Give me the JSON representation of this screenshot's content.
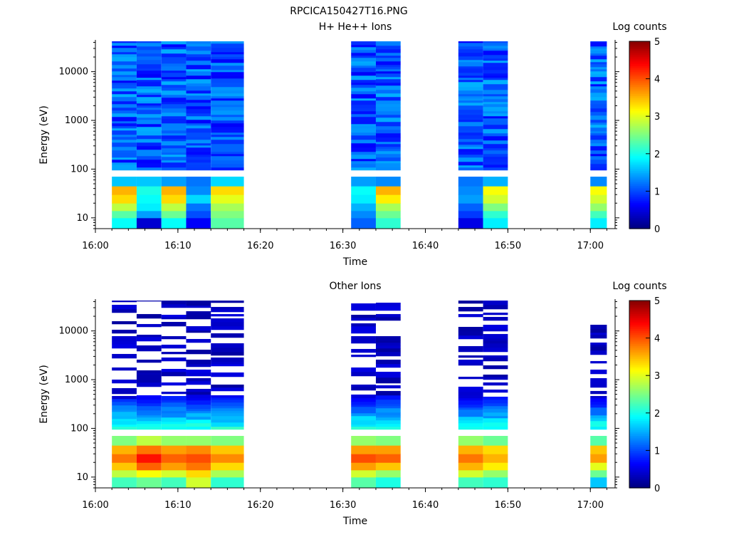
{
  "figure": {
    "title": "RPCICA150427T16.PNG"
  },
  "colorbar": {
    "label": "Log counts",
    "range": [
      0,
      5
    ],
    "ticks": [
      "0",
      "1",
      "2",
      "3",
      "4",
      "5"
    ]
  },
  "chart_data": [
    {
      "type": "heatmap",
      "title": "H+ He++ Ions",
      "xlabel": "Time",
      "ylabel": "Energy (eV)",
      "x_ticks": [
        "16:00",
        "16:10",
        "16:20",
        "16:30",
        "16:40",
        "16:50",
        "17:00"
      ],
      "y_ticks": [
        "10",
        "100",
        "1000",
        "10000"
      ],
      "xlim": [
        "16:00",
        "17:03"
      ],
      "ylim": [
        6,
        42000
      ],
      "y_scale": "log",
      "time_bins": [
        {
          "start": "16:02",
          "end": "16:05",
          "low_energy_log_counts": [
            1.9,
            2.3,
            2.8,
            3.3,
            3.5,
            1.6
          ]
        },
        {
          "start": "16:05",
          "end": "16:08",
          "low_energy_log_counts": [
            0.4,
            1.4,
            1.8,
            1.9,
            2.0,
            1.6
          ]
        },
        {
          "start": "16:08",
          "end": "16:11",
          "low_energy_log_counts": [
            1.9,
            2.4,
            2.8,
            3.3,
            3.5,
            1.4
          ]
        },
        {
          "start": "16:11",
          "end": "16:14",
          "low_energy_log_counts": [
            0.6,
            1.0,
            1.2,
            1.7,
            1.3,
            1.2
          ]
        },
        {
          "start": "16:14",
          "end": "16:18",
          "low_energy_log_counts": [
            2.3,
            2.5,
            2.7,
            3.0,
            3.3,
            1.7
          ]
        },
        {
          "start": "16:31",
          "end": "16:34",
          "low_energy_log_counts": [
            1.1,
            1.3,
            1.5,
            1.8,
            1.9,
            1.4
          ]
        },
        {
          "start": "16:34",
          "end": "16:37",
          "low_energy_log_counts": [
            2.1,
            2.4,
            2.7,
            3.2,
            3.5,
            1.3
          ]
        },
        {
          "start": "16:44",
          "end": "16:47",
          "low_energy_log_counts": [
            0.5,
            0.9,
            1.1,
            1.4,
            1.3,
            1.2
          ]
        },
        {
          "start": "16:47",
          "end": "16:50",
          "low_energy_log_counts": [
            1.8,
            2.1,
            2.5,
            2.9,
            3.1,
            1.5
          ]
        },
        {
          "start": "17:00",
          "end": "17:02",
          "low_energy_log_counts": [
            1.8,
            2.2,
            2.6,
            2.9,
            3.1,
            1.3
          ]
        }
      ]
    },
    {
      "type": "heatmap",
      "title": "Other Ions",
      "xlabel": "Time",
      "ylabel": "Energy (eV)",
      "x_ticks": [
        "16:00",
        "16:10",
        "16:20",
        "16:30",
        "16:40",
        "16:50",
        "17:00"
      ],
      "y_ticks": [
        "10",
        "100",
        "1000",
        "10000"
      ],
      "xlim": [
        "16:00",
        "17:03"
      ],
      "ylim": [
        6,
        42000
      ],
      "y_scale": "log",
      "time_bins": [
        {
          "start": "16:02",
          "end": "16:05",
          "low_energy_log_counts": [
            2.2,
            2.8,
            3.4,
            3.8,
            3.5,
            2.5
          ]
        },
        {
          "start": "16:05",
          "end": "16:08",
          "low_energy_log_counts": [
            2.4,
            3.1,
            3.9,
            4.3,
            3.8,
            2.8
          ]
        },
        {
          "start": "16:08",
          "end": "16:11",
          "low_energy_log_counts": [
            2.2,
            2.9,
            3.6,
            3.9,
            3.6,
            2.6
          ]
        },
        {
          "start": "16:11",
          "end": "16:14",
          "low_energy_log_counts": [
            2.9,
            3.3,
            3.8,
            4.0,
            3.7,
            2.6
          ]
        },
        {
          "start": "16:14",
          "end": "16:18",
          "low_energy_log_counts": [
            2.1,
            2.7,
            3.3,
            3.7,
            3.4,
            2.5
          ]
        },
        {
          "start": "16:31",
          "end": "16:34",
          "low_energy_log_counts": [
            2.3,
            2.9,
            3.6,
            4.0,
            3.6,
            2.6
          ]
        },
        {
          "start": "16:34",
          "end": "16:37",
          "low_energy_log_counts": [
            2.0,
            2.6,
            3.4,
            3.9,
            3.6,
            2.5
          ]
        },
        {
          "start": "16:44",
          "end": "16:47",
          "low_energy_log_counts": [
            2.2,
            2.9,
            3.5,
            3.8,
            3.5,
            2.6
          ]
        },
        {
          "start": "16:47",
          "end": "16:50",
          "low_energy_log_counts": [
            2.1,
            2.6,
            3.2,
            3.5,
            3.3,
            2.4
          ]
        },
        {
          "start": "17:00",
          "end": "17:02",
          "low_energy_log_counts": [
            1.6,
            2.4,
            3.0,
            3.6,
            3.4,
            2.3
          ]
        }
      ]
    }
  ]
}
